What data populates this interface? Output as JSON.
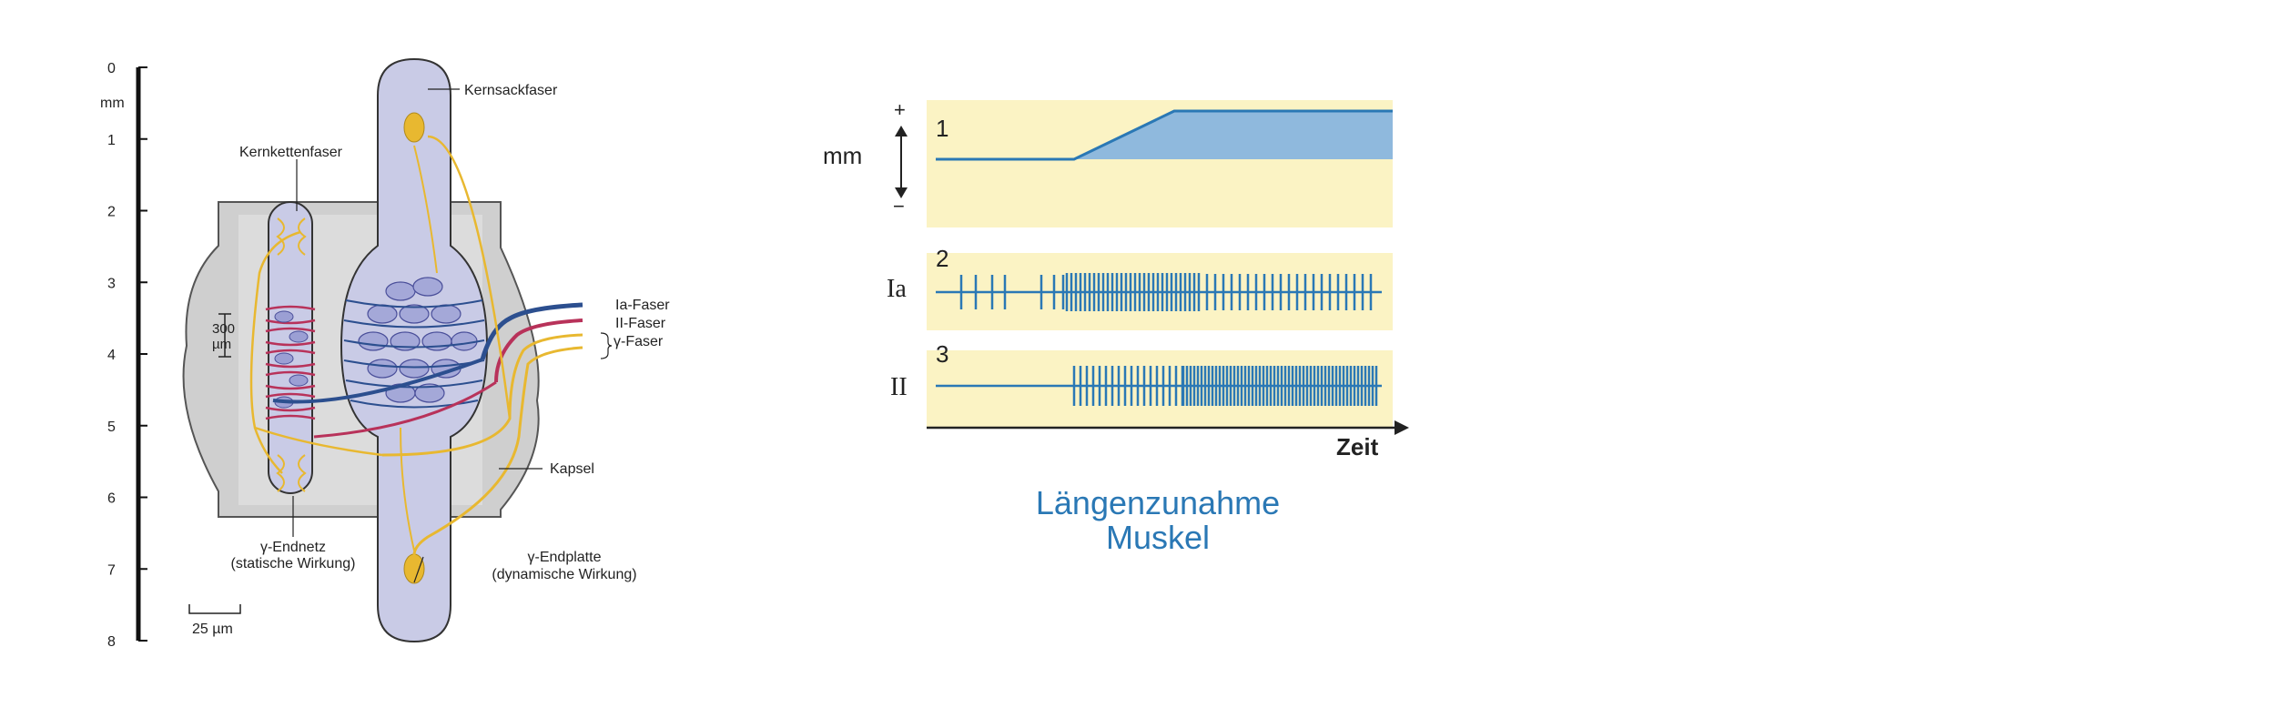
{
  "spindle": {
    "scale": {
      "ticks": [
        "0",
        "1",
        "2",
        "3",
        "4",
        "5",
        "6",
        "7",
        "8"
      ],
      "unit": "mm",
      "capsule_width_top": "300",
      "capsule_width_bottom": "µm",
      "scalebar": "25 µm"
    },
    "labels": {
      "nuclear_bag": "Kernsackfaser",
      "nuclear_chain": "Kernkettenfaser",
      "ia_fiber": "Ia-Faser",
      "ii_fiber": "II-Faser",
      "gamma_fiber": "γ-Faser",
      "capsule": "Kapsel",
      "gamma_net_line1": "γ-Endnetz",
      "gamma_net_line2": "(statische Wirkung)",
      "gamma_plate_line1": "γ-Endplatte",
      "gamma_plate_line2": "(dynamische Wirkung)"
    },
    "colors": {
      "fiber_fill": "#c9cbe6",
      "nerve_yellow": "#e8b830",
      "ia_blue": "#2c4f8f",
      "ii_red": "#b8325a",
      "capsule_gray": "#c8c8c8"
    }
  },
  "response": {
    "unit_label": "mm",
    "plus": "+",
    "minus": "−",
    "row_labels": [
      "Ia",
      "II"
    ],
    "row_numbers": [
      "1",
      "2",
      "3"
    ],
    "x_label": "Zeit",
    "caption_line1": "Längenzunahme",
    "caption_line2": "Muskel",
    "colors": {
      "panel_bg": "#fbf3c4",
      "trace": "#2a78b5",
      "stretch_fill": "#8fb9dd"
    }
  }
}
